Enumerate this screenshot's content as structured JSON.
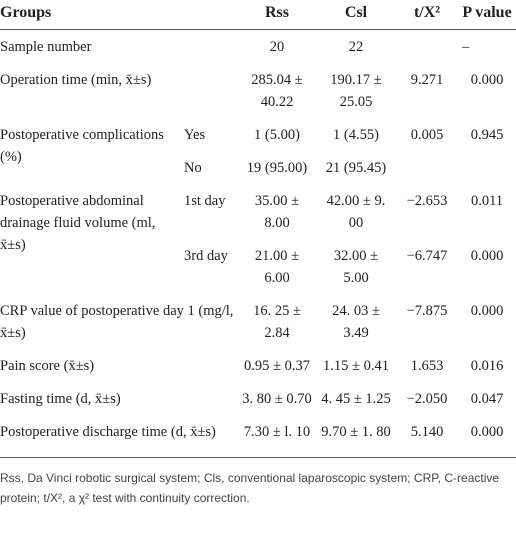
{
  "table": {
    "header": [
      "Groups",
      "Rss",
      "Csl",
      "t/X²",
      "P value"
    ],
    "rows": [
      {
        "label": "Sample number",
        "cells": [
          "20",
          "22"
        ],
        "p": "–"
      },
      {
        "label": "Operation time (min, x̄±s)",
        "cells": [
          "285.04 ± 40.22",
          "190.17 ± 25.05",
          "9.271",
          "0.000"
        ]
      },
      {
        "label": "Postoperative complications (%)",
        "sub": [
          {
            "label": "Yes",
            "cells": [
              "1 (5.00)",
              "1 (4.55)",
              "0.005",
              "0.945"
            ]
          },
          {
            "label": "No",
            "cells": [
              "19 (95.00)",
              "21 (95.45)"
            ]
          }
        ]
      },
      {
        "label": "Postoperative abdominal drainage fluid volume (ml, x̄±s)",
        "sub": [
          {
            "label": "1st day",
            "cells": [
              "35.00 ± 8.00",
              "42.00 ± 9. 00",
              "−2.653",
              "0.011"
            ]
          },
          {
            "label": "3rd day",
            "cells": [
              "21.00 ± 6.00",
              "32.00 ± 5.00",
              "−6.747",
              "0.000"
            ]
          }
        ]
      },
      {
        "label": "CRP value of postoperative day 1 (mg/l, x̄±s)",
        "cells": [
          "16. 25 ± 2.84",
          "24. 03 ± 3.49",
          "−7.875",
          "0.000"
        ]
      },
      {
        "label": "Pain score (x̄±s)",
        "cells": [
          "0.95 ± 0.37",
          "1.15 ± 0.41",
          "1.653",
          "0.016"
        ]
      },
      {
        "label": "Fasting time (d, x̄±s)",
        "cells": [
          "3. 80 ± 0.70",
          "4. 45 ± 1.25",
          "−2.050",
          "0.047"
        ]
      },
      {
        "label": "Postoperative discharge time (d, x̄±s)",
        "cells": [
          "7.30 ± l. 10",
          "9.70 ± 1. 80",
          "5.140",
          "0.000"
        ]
      }
    ],
    "footnote": "Rss, Da Vinci robotic surgical system; Cls, conventional laparoscopic system; CRP, C-reactive protein; t/X², a χ² test with continuity correction."
  }
}
